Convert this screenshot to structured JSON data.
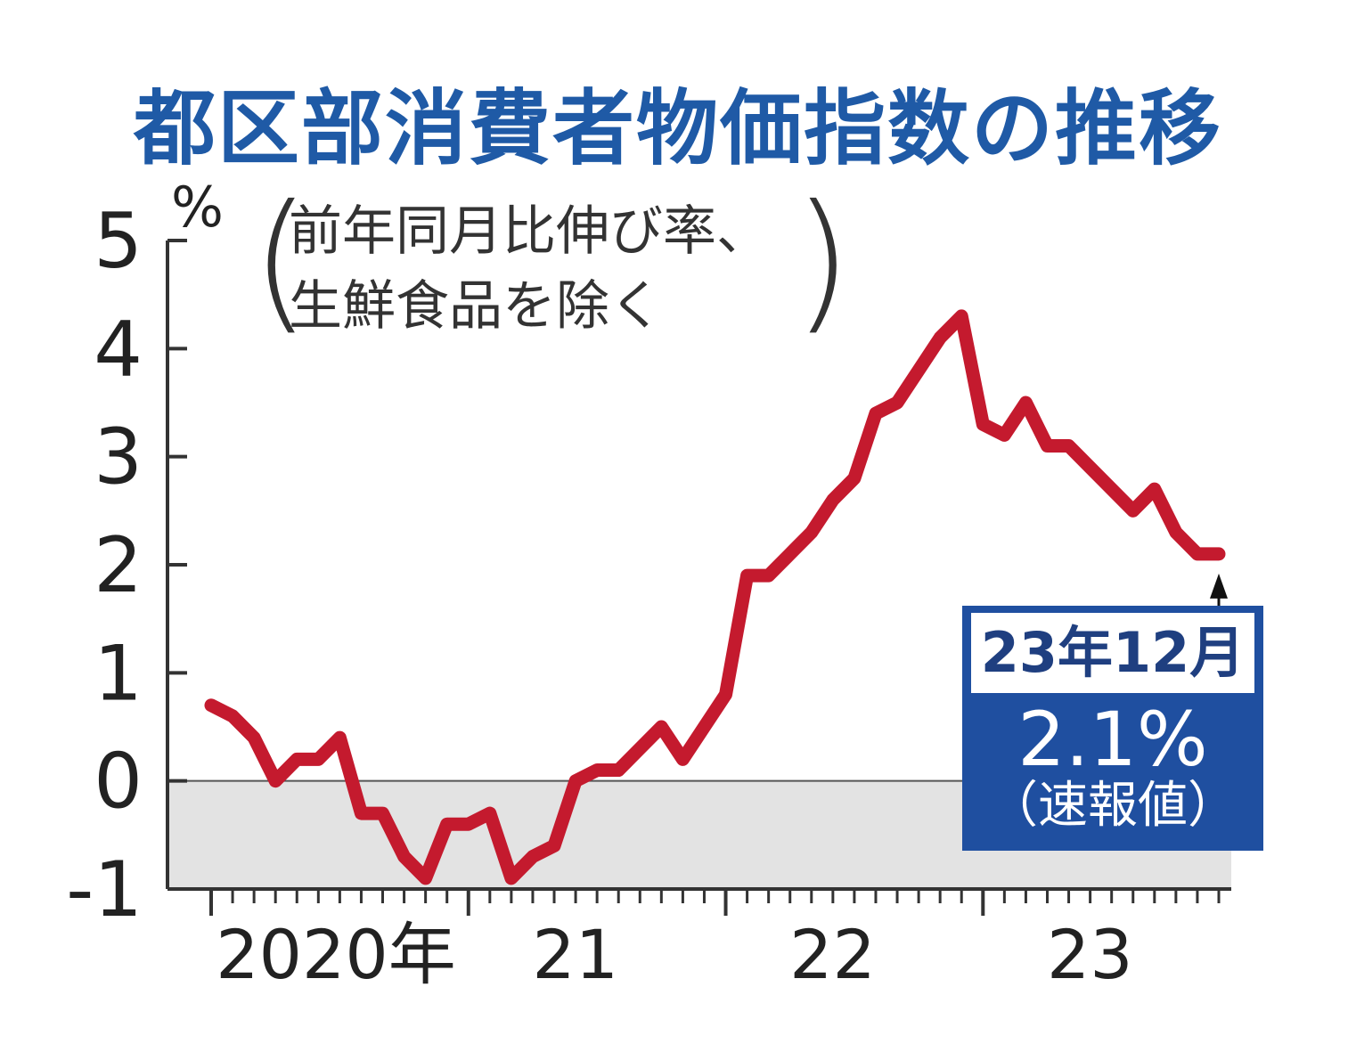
{
  "chart_data": {
    "type": "line",
    "title": "都区部消費者物価指数の推移",
    "ylabel": "%",
    "note_lines": [
      "前年同月比伸び率、",
      "生鮮食品を除く"
    ],
    "ylim": [
      -1,
      5
    ],
    "yticks": [
      -1,
      0,
      1,
      2,
      3,
      4,
      5
    ],
    "xlim": [
      "2020-01",
      "2023-12"
    ],
    "x_ticks": [
      {
        "x": "2020-01",
        "label": "2020年"
      },
      {
        "x": "2021-01",
        "label": "21"
      },
      {
        "x": "2022-01",
        "label": "22"
      },
      {
        "x": "2023-01",
        "label": "23"
      }
    ],
    "negative_region_shaded": true,
    "line_color": "#c41a2e",
    "series": [
      {
        "x": [
          "2020-01",
          "2020-02",
          "2020-03",
          "2020-04",
          "2020-05",
          "2020-06",
          "2020-07",
          "2020-08",
          "2020-09",
          "2020-10",
          "2020-11",
          "2020-12",
          "2021-01",
          "2021-02",
          "2021-03",
          "2021-04",
          "2021-05",
          "2021-06",
          "2021-07",
          "2021-08",
          "2021-09",
          "2021-10",
          "2021-11",
          "2021-12",
          "2022-01",
          "2022-02",
          "2022-03",
          "2022-04",
          "2022-05",
          "2022-06",
          "2022-07",
          "2022-08",
          "2022-09",
          "2022-10",
          "2022-11",
          "2022-12",
          "2023-01",
          "2023-02",
          "2023-03",
          "2023-04",
          "2023-05",
          "2023-06",
          "2023-07",
          "2023-08",
          "2023-09",
          "2023-10",
          "2023-11",
          "2023-12"
        ],
        "values": [
          0.7,
          0.6,
          0.4,
          0.0,
          0.2,
          0.2,
          0.4,
          -0.3,
          -0.3,
          -0.7,
          -0.9,
          -0.4,
          -0.4,
          -0.3,
          -0.9,
          -0.7,
          -0.6,
          0.0,
          0.1,
          0.1,
          0.3,
          0.5,
          0.2,
          0.5,
          0.8,
          1.9,
          1.9,
          2.1,
          2.3,
          2.6,
          2.8,
          3.4,
          3.5,
          3.8,
          4.1,
          4.3,
          3.3,
          3.2,
          3.5,
          3.1,
          3.1,
          2.9,
          2.7,
          2.5,
          2.7,
          2.3,
          2.1,
          2.1
        ]
      }
    ],
    "annotation": {
      "x": "2023-12",
      "label": "23年12月",
      "value_text": "2.1%",
      "sub_text": "（速報値）"
    }
  }
}
